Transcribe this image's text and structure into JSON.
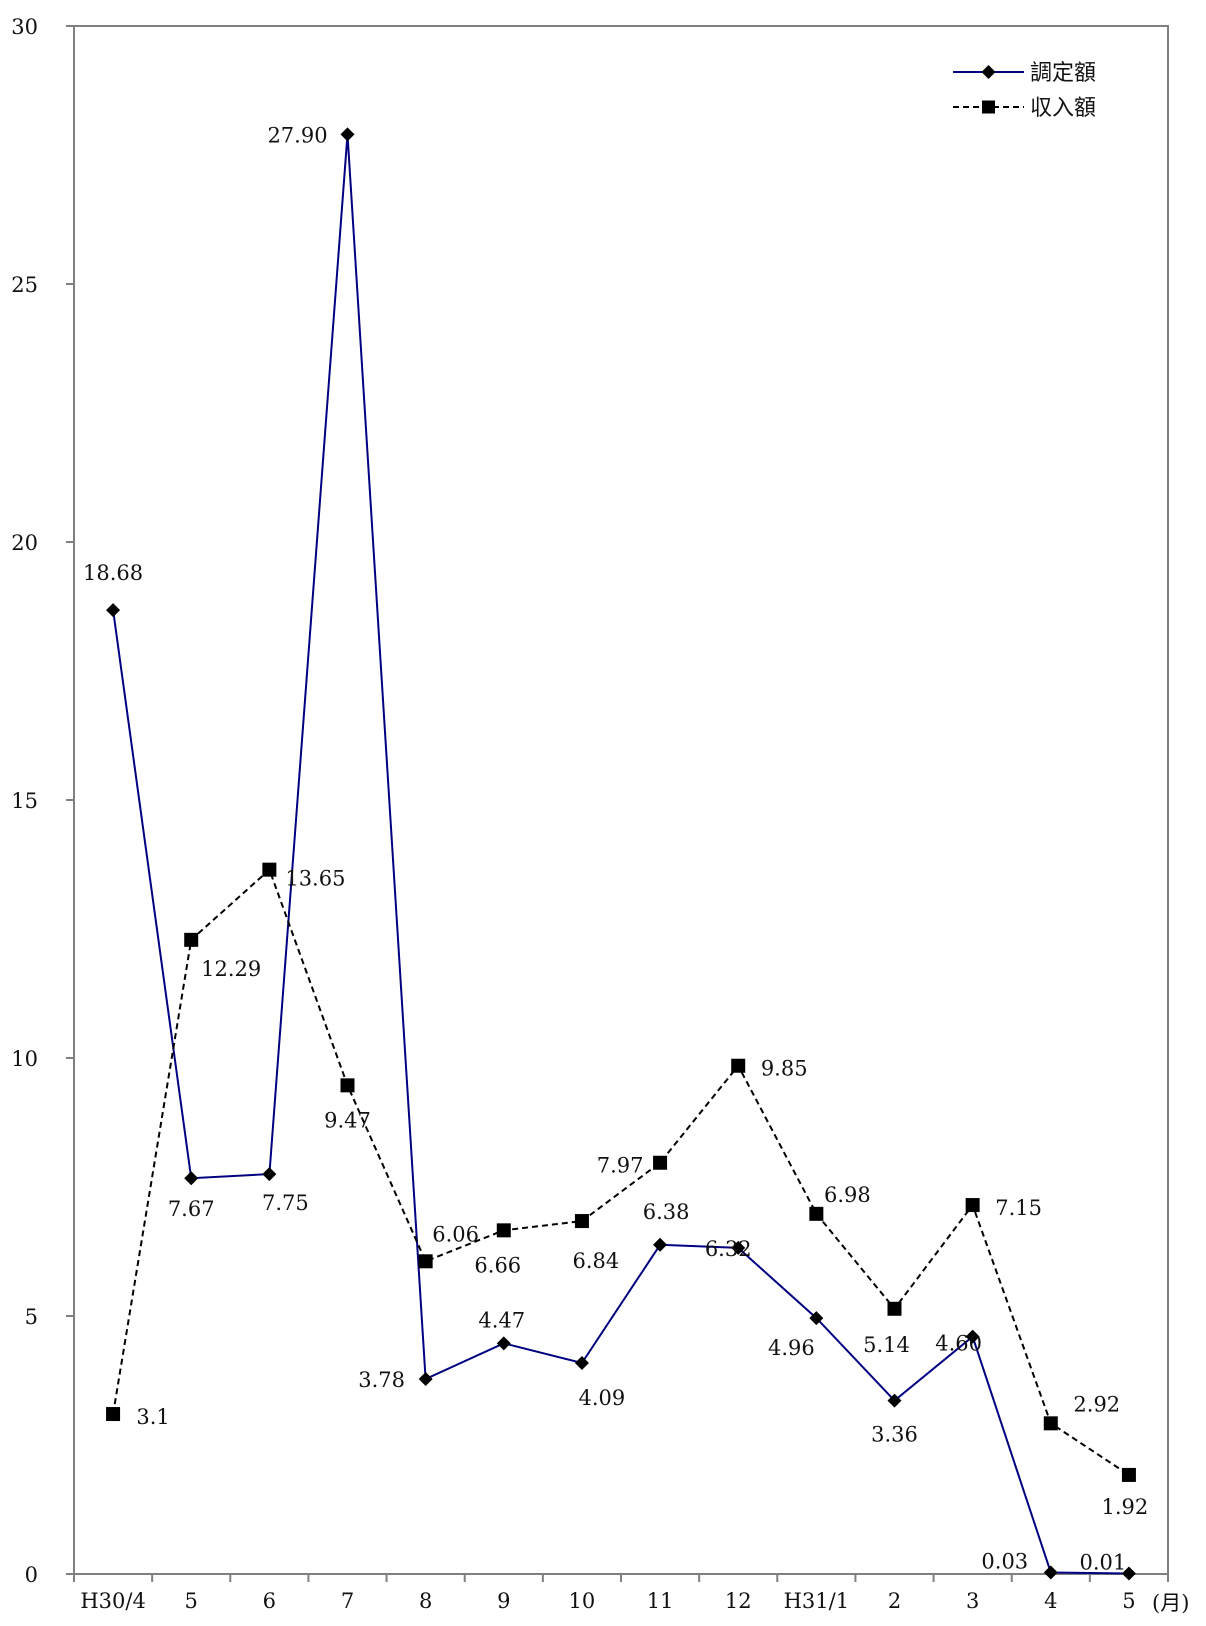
{
  "chart_data": {
    "type": "line",
    "categories": [
      "H30/4",
      "5",
      "6",
      "7",
      "8",
      "9",
      "10",
      "11",
      "12",
      "H31/1",
      "2",
      "3",
      "4",
      "5"
    ],
    "x_unit": "(月)",
    "ylim": [
      0,
      30
    ],
    "y_ticks": [
      "0",
      "5",
      "10",
      "15",
      "20",
      "25",
      "30"
    ],
    "y_tick_values": [
      0,
      5,
      10,
      15,
      20,
      25,
      30
    ],
    "grid": false,
    "legend_position": "top-right",
    "series": [
      {
        "name": "調定額",
        "color": "#000080",
        "line_style": "solid",
        "marker": "diamond",
        "values": [
          18.68,
          7.67,
          7.75,
          27.9,
          3.78,
          4.47,
          4.09,
          6.38,
          6.32,
          4.96,
          3.36,
          4.6,
          0.03,
          0.01
        ],
        "labels": [
          "18.68",
          "7.67",
          "7.75",
          "27.90",
          "3.78",
          "4.47",
          "4.09",
          "6.38",
          "6.32",
          "4.96",
          "3.36",
          "4.60",
          "0.03",
          "0.01"
        ]
      },
      {
        "name": "収入額",
        "color": "#000000",
        "line_style": "dashed",
        "marker": "square",
        "values": [
          3.1,
          12.29,
          13.65,
          9.47,
          6.06,
          6.66,
          6.84,
          7.97,
          9.85,
          6.98,
          5.14,
          7.15,
          2.92,
          1.92
        ],
        "labels": [
          "3.1",
          "12.29",
          "13.65",
          "9.47",
          "6.06",
          "6.66",
          "6.84",
          "7.97",
          "9.85",
          "6.98",
          "5.14",
          "7.15",
          "2.92",
          "1.92"
        ]
      }
    ]
  }
}
